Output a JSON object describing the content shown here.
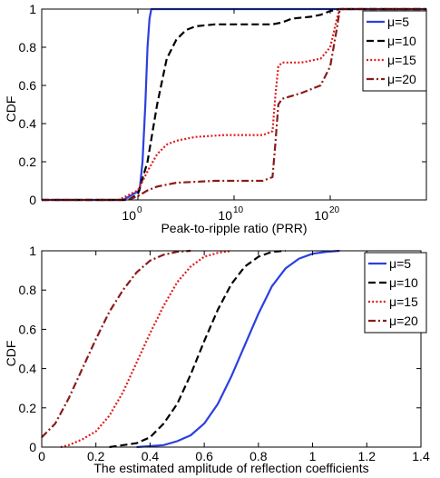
{
  "chart_data": [
    {
      "type": "line",
      "xscale": "log",
      "xlabel": "Peak-to-ripple ratio (PRR)",
      "ylabel": "CDF",
      "xlim": [
        1e-10,
        1e+30
      ],
      "ylim": [
        0,
        1
      ],
      "xticks": [
        1,
        10000000000.0,
        1e+20
      ],
      "xtick_labels": [
        {
          "base": "10",
          "exp": "0"
        },
        {
          "base": "10",
          "exp": "10"
        },
        {
          "base": "10",
          "exp": "20"
        }
      ],
      "yticks": [
        0,
        0.2,
        0.4,
        0.6,
        0.8,
        1
      ],
      "ytick_labels": [
        "0",
        "0.2",
        "0.4",
        "0.6",
        "0.8",
        "1"
      ],
      "grid": false,
      "legend_position": "top-right",
      "series": [
        {
          "name": "μ=5",
          "color": "#2b3fe0",
          "dash": "solid",
          "points": [
            [
              1e-10,
              0
            ],
            [
              0.03,
              0
            ],
            [
              1.5,
              0.05
            ],
            [
              3,
              0.2
            ],
            [
              6,
              0.5
            ],
            [
              10.0,
              0.8
            ],
            [
              16.0,
              0.95
            ],
            [
              25.0,
              1
            ],
            [
              1e+30,
              1
            ]
          ]
        },
        {
          "name": "μ=10",
          "color": "#000000",
          "dash": "dashed",
          "points": [
            [
              1e-10,
              0
            ],
            [
              0.1,
              0
            ],
            [
              1,
              0.03
            ],
            [
              10.0,
              0.2
            ],
            [
              100.0,
              0.5
            ],
            [
              1000.0,
              0.74
            ],
            [
              10000.0,
              0.84
            ],
            [
              100000.0,
              0.89
            ],
            [
              1000000.0,
              0.91
            ],
            [
              100000000.0,
              0.92
            ],
            [
              100000000000.0,
              0.92
            ],
            [
              100000000000000.0,
              0.92
            ],
            [
              1000000000000000.0,
              0.93
            ],
            [
              1e+16,
              0.95
            ],
            [
              1e+18,
              0.96
            ],
            [
              1e+19,
              0.97
            ],
            [
              1e+20,
              0.99
            ],
            [
              1e+21,
              1
            ],
            [
              1e+30,
              1
            ]
          ]
        },
        {
          "name": "μ=15",
          "color": "#e01b1b",
          "dash": "dotted",
          "points": [
            [
              1e-10,
              0
            ],
            [
              0.01,
              0
            ],
            [
              1,
              0.05
            ],
            [
              10.0,
              0.15
            ],
            [
              100.0,
              0.24
            ],
            [
              1000.0,
              0.29
            ],
            [
              10000.0,
              0.31
            ],
            [
              1000000.0,
              0.33
            ],
            [
              1000000000.0,
              0.34
            ],
            [
              10000000000000.0,
              0.34
            ],
            [
              100000000000000.0,
              0.36
            ],
            [
              200000000000000.0,
              0.55
            ],
            [
              400000000000000.0,
              0.7
            ],
            [
              1000000000000000.0,
              0.72
            ],
            [
              1e+17,
              0.72
            ],
            [
              1e+19,
              0.74
            ],
            [
              1e+20,
              0.8
            ],
            [
              5e+20,
              0.95
            ],
            [
              1e+21,
              1
            ],
            [
              1e+30,
              1
            ]
          ]
        },
        {
          "name": "μ=20",
          "color": "#8b1a1a",
          "dash": "dashdot",
          "points": [
            [
              1e-10,
              0
            ],
            [
              0.1,
              0
            ],
            [
              1,
              0.02
            ],
            [
              10.0,
              0.05
            ],
            [
              100.0,
              0.07
            ],
            [
              10000.0,
              0.09
            ],
            [
              100000000.0,
              0.1
            ],
            [
              10000000000000.0,
              0.1
            ],
            [
              100000000000000.0,
              0.12
            ],
            [
              200000000000000.0,
              0.3
            ],
            [
              400000000000000.0,
              0.5
            ],
            [
              1000000000000000.0,
              0.53
            ],
            [
              1e+17,
              0.56
            ],
            [
              1e+19,
              0.6
            ],
            [
              1e+20,
              0.7
            ],
            [
              5e+20,
              0.9
            ],
            [
              1e+21,
              1
            ],
            [
              1e+30,
              1
            ]
          ]
        }
      ]
    },
    {
      "type": "line",
      "xscale": "linear",
      "xlabel": "The estimated amplitude of reflection coefficients",
      "ylabel": "CDF",
      "xlim": [
        0,
        1.4
      ],
      "ylim": [
        0,
        1
      ],
      "xticks": [
        0,
        0.2,
        0.4,
        0.6,
        0.8,
        1,
        1.2,
        1.4
      ],
      "xtick_labels": [
        "0",
        "0.2",
        "0.4",
        "0.6",
        "0.8",
        "1",
        "1.2",
        "1.4"
      ],
      "yticks": [
        0,
        0.2,
        0.4,
        0.6,
        0.8,
        1
      ],
      "ytick_labels": [
        "0",
        "0.2",
        "0.4",
        "0.6",
        "0.8",
        "1"
      ],
      "grid": false,
      "legend_position": "top-right",
      "series": [
        {
          "name": "μ=5",
          "color": "#2b3fe0",
          "dash": "solid",
          "points": [
            [
              0.35,
              0
            ],
            [
              0.45,
              0.01
            ],
            [
              0.5,
              0.03
            ],
            [
              0.55,
              0.06
            ],
            [
              0.6,
              0.12
            ],
            [
              0.65,
              0.22
            ],
            [
              0.7,
              0.36
            ],
            [
              0.75,
              0.52
            ],
            [
              0.8,
              0.68
            ],
            [
              0.85,
              0.82
            ],
            [
              0.9,
              0.91
            ],
            [
              0.95,
              0.96
            ],
            [
              1,
              0.985
            ],
            [
              1.05,
              0.995
            ],
            [
              1.1,
              1
            ]
          ]
        },
        {
          "name": "μ=10",
          "color": "#000000",
          "dash": "dashed",
          "points": [
            [
              0.25,
              0
            ],
            [
              0.35,
              0.02
            ],
            [
              0.4,
              0.05
            ],
            [
              0.45,
              0.12
            ],
            [
              0.5,
              0.22
            ],
            [
              0.55,
              0.37
            ],
            [
              0.6,
              0.54
            ],
            [
              0.65,
              0.7
            ],
            [
              0.7,
              0.83
            ],
            [
              0.75,
              0.92
            ],
            [
              0.8,
              0.97
            ],
            [
              0.85,
              0.995
            ],
            [
              0.9,
              1
            ]
          ]
        },
        {
          "name": "μ=15",
          "color": "#e01b1b",
          "dash": "dotted",
          "points": [
            [
              0.07,
              0
            ],
            [
              0.1,
              0.01
            ],
            [
              0.15,
              0.04
            ],
            [
              0.2,
              0.08
            ],
            [
              0.25,
              0.16
            ],
            [
              0.3,
              0.28
            ],
            [
              0.35,
              0.43
            ],
            [
              0.4,
              0.58
            ],
            [
              0.45,
              0.72
            ],
            [
              0.5,
              0.84
            ],
            [
              0.55,
              0.92
            ],
            [
              0.6,
              0.97
            ],
            [
              0.65,
              0.99
            ],
            [
              0.7,
              1
            ]
          ]
        },
        {
          "name": "μ=20",
          "color": "#8b1a1a",
          "dash": "dashdot",
          "points": [
            [
              0,
              0.05
            ],
            [
              0.05,
              0.12
            ],
            [
              0.1,
              0.25
            ],
            [
              0.15,
              0.4
            ],
            [
              0.2,
              0.55
            ],
            [
              0.25,
              0.69
            ],
            [
              0.3,
              0.8
            ],
            [
              0.35,
              0.89
            ],
            [
              0.4,
              0.95
            ],
            [
              0.45,
              0.98
            ],
            [
              0.5,
              0.995
            ],
            [
              0.55,
              1
            ]
          ]
        }
      ]
    }
  ]
}
